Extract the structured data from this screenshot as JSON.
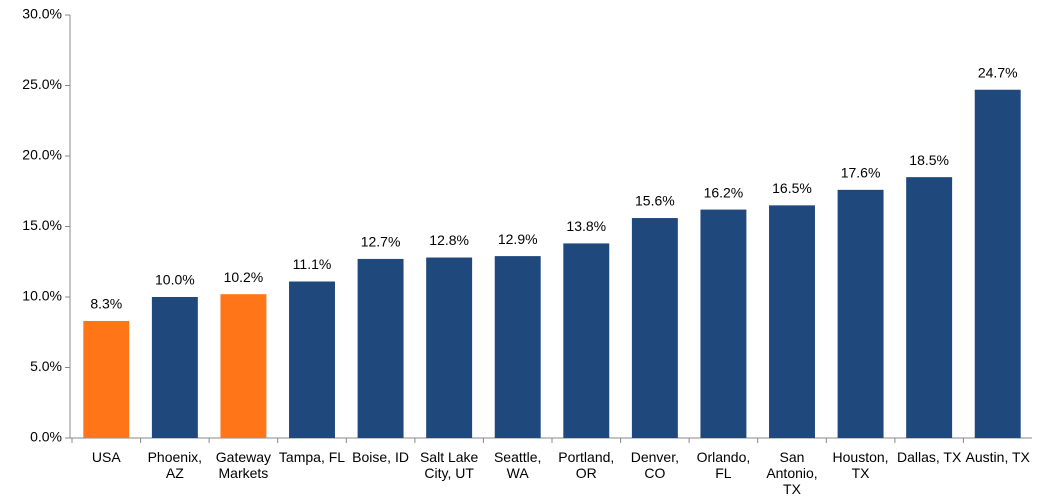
{
  "chart_data": {
    "type": "bar",
    "categories": [
      "USA",
      "Phoenix, AZ",
      "Gateway Markets",
      "Tampa, FL",
      "Boise, ID",
      "Salt Lake City, UT",
      "Seattle, WA",
      "Portland, OR",
      "Denver, CO",
      "Orlando, FL",
      "San Antonio, TX",
      "Houston, TX",
      "Dallas, TX",
      "Austin, TX"
    ],
    "values": [
      8.3,
      10.0,
      10.2,
      11.1,
      12.7,
      12.8,
      12.9,
      13.8,
      15.6,
      16.2,
      16.5,
      17.6,
      18.5,
      24.7
    ],
    "value_labels": [
      "8.3%",
      "10.0%",
      "10.2%",
      "11.1%",
      "12.7%",
      "12.8%",
      "12.9%",
      "13.8%",
      "15.6%",
      "16.2%",
      "16.5%",
      "17.6%",
      "18.5%",
      "24.7%"
    ],
    "colors": [
      "#ff7518",
      "#1f497d",
      "#ff7518",
      "#1f497d",
      "#1f497d",
      "#1f497d",
      "#1f497d",
      "#1f497d",
      "#1f497d",
      "#1f497d",
      "#1f497d",
      "#1f497d",
      "#1f497d",
      "#1f497d"
    ],
    "ylim": [
      0,
      30
    ],
    "yticks": [
      {
        "value": 0,
        "label": "0.0%"
      },
      {
        "value": 5,
        "label": "5.0%"
      },
      {
        "value": 10,
        "label": "10.0%"
      },
      {
        "value": 15,
        "label": "15.0%"
      },
      {
        "value": 20,
        "label": "20.0%"
      },
      {
        "value": 25,
        "label": "25.0%"
      },
      {
        "value": 30,
        "label": "30.0%"
      }
    ],
    "grid": false
  }
}
